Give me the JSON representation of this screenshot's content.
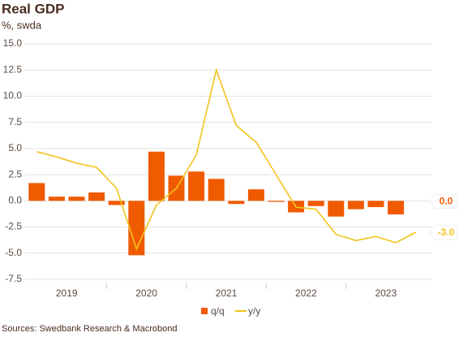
{
  "chart_data": {
    "type": "bar_line",
    "title": "Real GDP",
    "subtitle": "%, swda",
    "source": "Sources: Swedbank Research & Macrobond",
    "years": [
      "2019",
      "2020",
      "2021",
      "2022",
      "2023"
    ],
    "ylim": [
      -7.5,
      15
    ],
    "yticks": [
      {
        "value": -7.5,
        "label": "-7.5"
      },
      {
        "value": -5,
        "label": "-5.0"
      },
      {
        "value": -2.5,
        "label": "-2.5"
      },
      {
        "value": 0,
        "label": "0.0"
      },
      {
        "value": 2.5,
        "label": "2.5"
      },
      {
        "value": 5,
        "label": "5.0"
      },
      {
        "value": 7.5,
        "label": "7.5"
      },
      {
        "value": 10,
        "label": "10.0"
      },
      {
        "value": 12.5,
        "label": "12.5"
      },
      {
        "value": 15,
        "label": "15.0"
      }
    ],
    "grid": true,
    "series": [
      {
        "name": "q/q",
        "kind": "bar",
        "color": "#f05a00",
        "end_label": "0.0",
        "values": [
          1.7,
          0.4,
          0.4,
          0.8,
          -0.4,
          -5.2,
          4.7,
          2.4,
          2.8,
          2.1,
          -0.3,
          1.1,
          -0.1,
          -1.1,
          -0.5,
          -1.5,
          -0.8,
          -0.6,
          -1.3,
          0.0
        ]
      },
      {
        "name": "y/y",
        "kind": "line",
        "color": "#f2c31b",
        "end_label": "-3.0",
        "values": [
          4.7,
          4.2,
          3.6,
          3.2,
          1.2,
          -4.6,
          -0.4,
          1.2,
          4.4,
          12.5,
          7.2,
          5.6,
          2.5,
          -0.6,
          -0.8,
          -3.2,
          -3.8,
          -3.4,
          -4.0,
          -3.0
        ]
      }
    ]
  }
}
